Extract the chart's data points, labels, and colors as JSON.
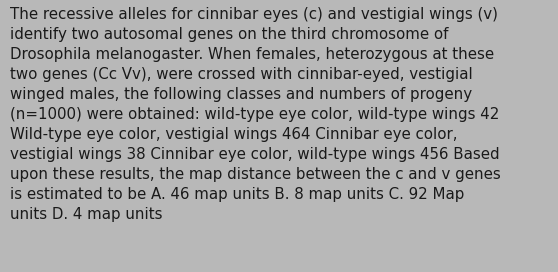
{
  "text": "The recessive alleles for cinnibar eyes (c) and vestigial wings (v)\nidentify two autosomal genes on the third chromosome of\nDrosophila melanogaster. When females, heterozygous at these\ntwo genes (Cc Vv), were crossed with cinnibar-eyed, vestigial\nwinged males, the following classes and numbers of progeny\n(n=1000) were obtained: wild-type eye color, wild-type wings 42\nWild-type eye color, vestigial wings 464 Cinnibar eye color,\nvestigial wings 38 Cinnibar eye color, wild-type wings 456 Based\nupon these results, the map distance between the c and v genes\nis estimated to be A. 46 map units B. 8 map units C. 92 Map\nunits D. 4 map units",
  "background_color": "#b8b8b8",
  "text_color": "#1a1a1a",
  "font_size": 10.8,
  "fig_width": 5.58,
  "fig_height": 2.72,
  "dpi": 100
}
